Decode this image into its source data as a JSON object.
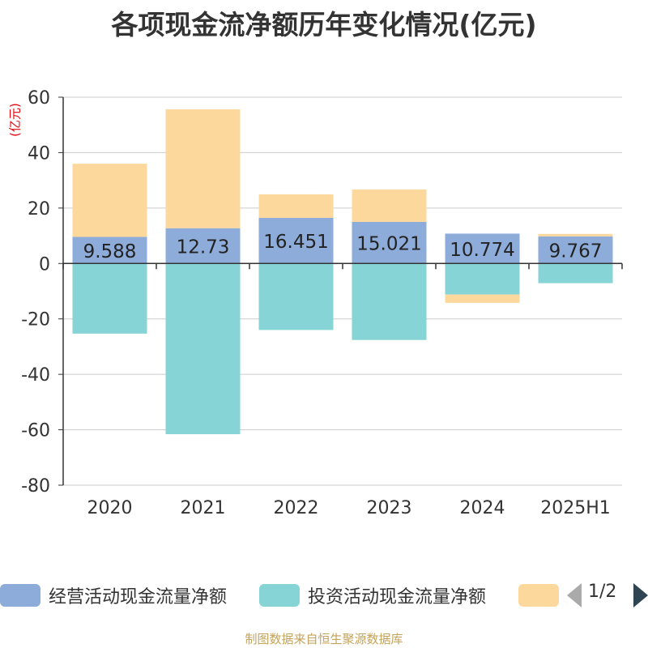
{
  "title": "各项现金流净额历年变化情况(亿元)",
  "source": "制图数据来自恒生聚源数据库",
  "pager": {
    "text": "1/2"
  },
  "chart_data": {
    "type": "bar",
    "stacked": true,
    "title": "各项现金流净额历年变化情况(亿元)",
    "ylabel": "(亿元)",
    "xlabel": "",
    "categories": [
      "2020",
      "2021",
      "2022",
      "2023",
      "2024",
      "2025H1"
    ],
    "ylim": [
      -80,
      60
    ],
    "yticks": [
      60,
      40,
      20,
      0,
      -20,
      -40,
      -60,
      -80
    ],
    "grid": true,
    "legend_position": "bottom",
    "series": [
      {
        "name": "经营活动现金流量净额",
        "color": "#8eacd9",
        "values": [
          9.588,
          12.73,
          16.451,
          15.021,
          10.774,
          9.767
        ],
        "labels": [
          "9.588",
          "12.73",
          "16.451",
          "15.021",
          "10.774",
          "9.767"
        ]
      },
      {
        "name": "投资活动现金流量净额",
        "color": "#86d4d6",
        "values": [
          -25.3,
          -61.6,
          -24.0,
          -27.6,
          -11.2,
          -7.1
        ]
      },
      {
        "name": "",
        "color": "#fdd89c",
        "values": [
          26.4,
          42.9,
          8.5,
          11.7,
          -3.0,
          0.9
        ]
      }
    ]
  }
}
